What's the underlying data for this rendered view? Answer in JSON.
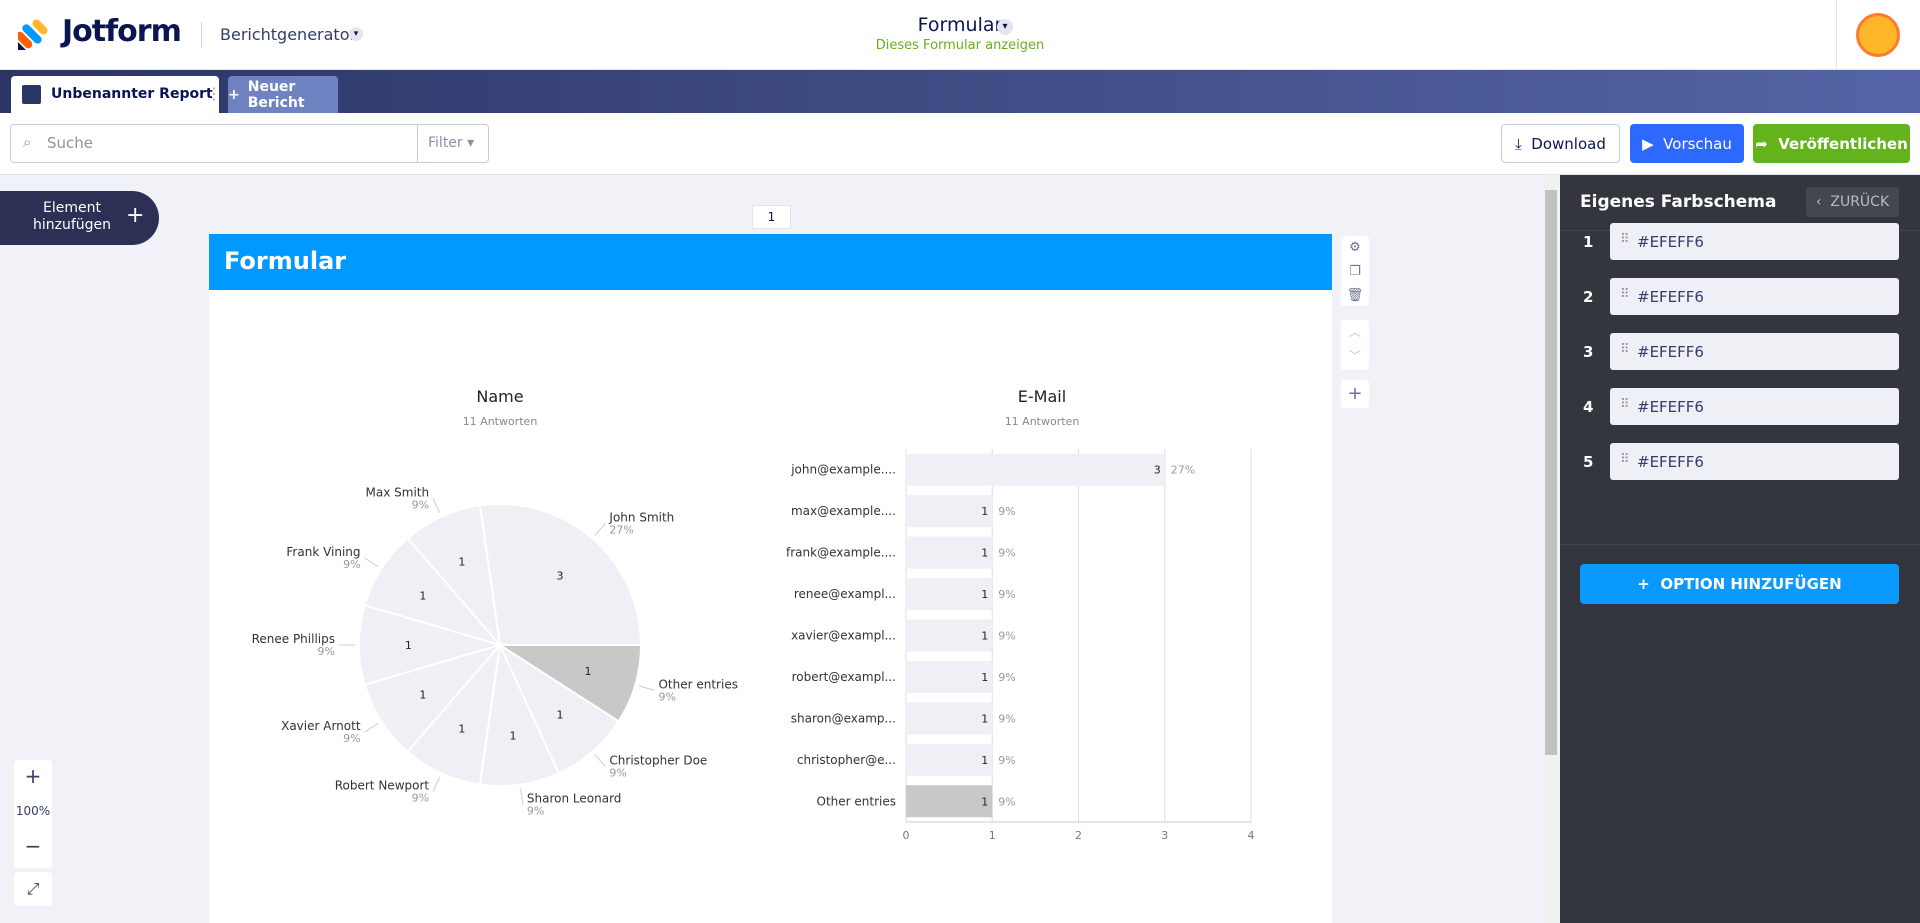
{
  "header": {
    "logo": "Jotform",
    "app": "Berichtgenerator",
    "form_title": "Formular",
    "form_link": "Dieses Formular anzeigen"
  },
  "tabs": [
    "Unbenannter Report",
    "Neuer Bericht"
  ],
  "toolbar": {
    "search_placeholder": "Suche",
    "filter": "Filter",
    "download": "Download",
    "preview": "Vorschau",
    "publish": "Veröffentlichen"
  },
  "canvas": {
    "add_element": "Element hinzufügen",
    "page_number": 1,
    "zoom": "100%"
  },
  "report": {
    "title": "Formular"
  },
  "chart_data": [
    {
      "type": "pie",
      "title": "Name",
      "subtitle": "11 Antworten",
      "categories": [
        "John Smith",
        "Max Smith",
        "Frank Vining",
        "Renee Phillips",
        "Xavier Arnott",
        "Robert Newport",
        "Sharon Leonard",
        "Christopher Doe",
        "Other entries"
      ],
      "values": [
        3,
        1,
        1,
        1,
        1,
        1,
        1,
        1,
        1
      ],
      "percent_labels": [
        "27%",
        "9%",
        "9%",
        "9%",
        "9%",
        "9%",
        "9%",
        "9%",
        "9%"
      ],
      "colors": [
        "#EFEFF6",
        "#EFEFF6",
        "#EFEFF6",
        "#EFEFF6",
        "#EFEFF6",
        "#EFEFF6",
        "#EFEFF6",
        "#EFEFF6",
        "#C8C8C8"
      ]
    },
    {
      "type": "bar",
      "orientation": "horizontal",
      "title": "E-Mail",
      "subtitle": "11 Antworten",
      "categories": [
        "john@example....",
        "max@example....",
        "frank@example....",
        "renee@exampl...",
        "xavier@exampl...",
        "robert@exampl...",
        "sharon@examp...",
        "christopher@e...",
        "Other entries"
      ],
      "values": [
        3,
        1,
        1,
        1,
        1,
        1,
        1,
        1,
        1
      ],
      "percent_labels": [
        "27%",
        "9%",
        "9%",
        "9%",
        "9%",
        "9%",
        "9%",
        "9%",
        "9%"
      ],
      "colors": [
        "#EFEFF6",
        "#EFEFF6",
        "#EFEFF6",
        "#EFEFF6",
        "#EFEFF6",
        "#EFEFF6",
        "#EFEFF6",
        "#EFEFF6",
        "#C8C8C8"
      ],
      "xlim": [
        0,
        4
      ],
      "xticks": [
        0,
        1,
        2,
        3,
        4
      ],
      "grid": true
    }
  ],
  "sidebar": {
    "title": "Eigenes Farbschema",
    "back": "ZURÜCK",
    "colors": [
      {
        "index": 1,
        "value": "#EFEFF6"
      },
      {
        "index": 2,
        "value": "#EFEFF6"
      },
      {
        "index": 3,
        "value": "#EFEFF6"
      },
      {
        "index": 4,
        "value": "#EFEFF6"
      },
      {
        "index": 5,
        "value": "#EFEFF6"
      }
    ],
    "add_option": "OPTION HINZUFÜGEN"
  }
}
